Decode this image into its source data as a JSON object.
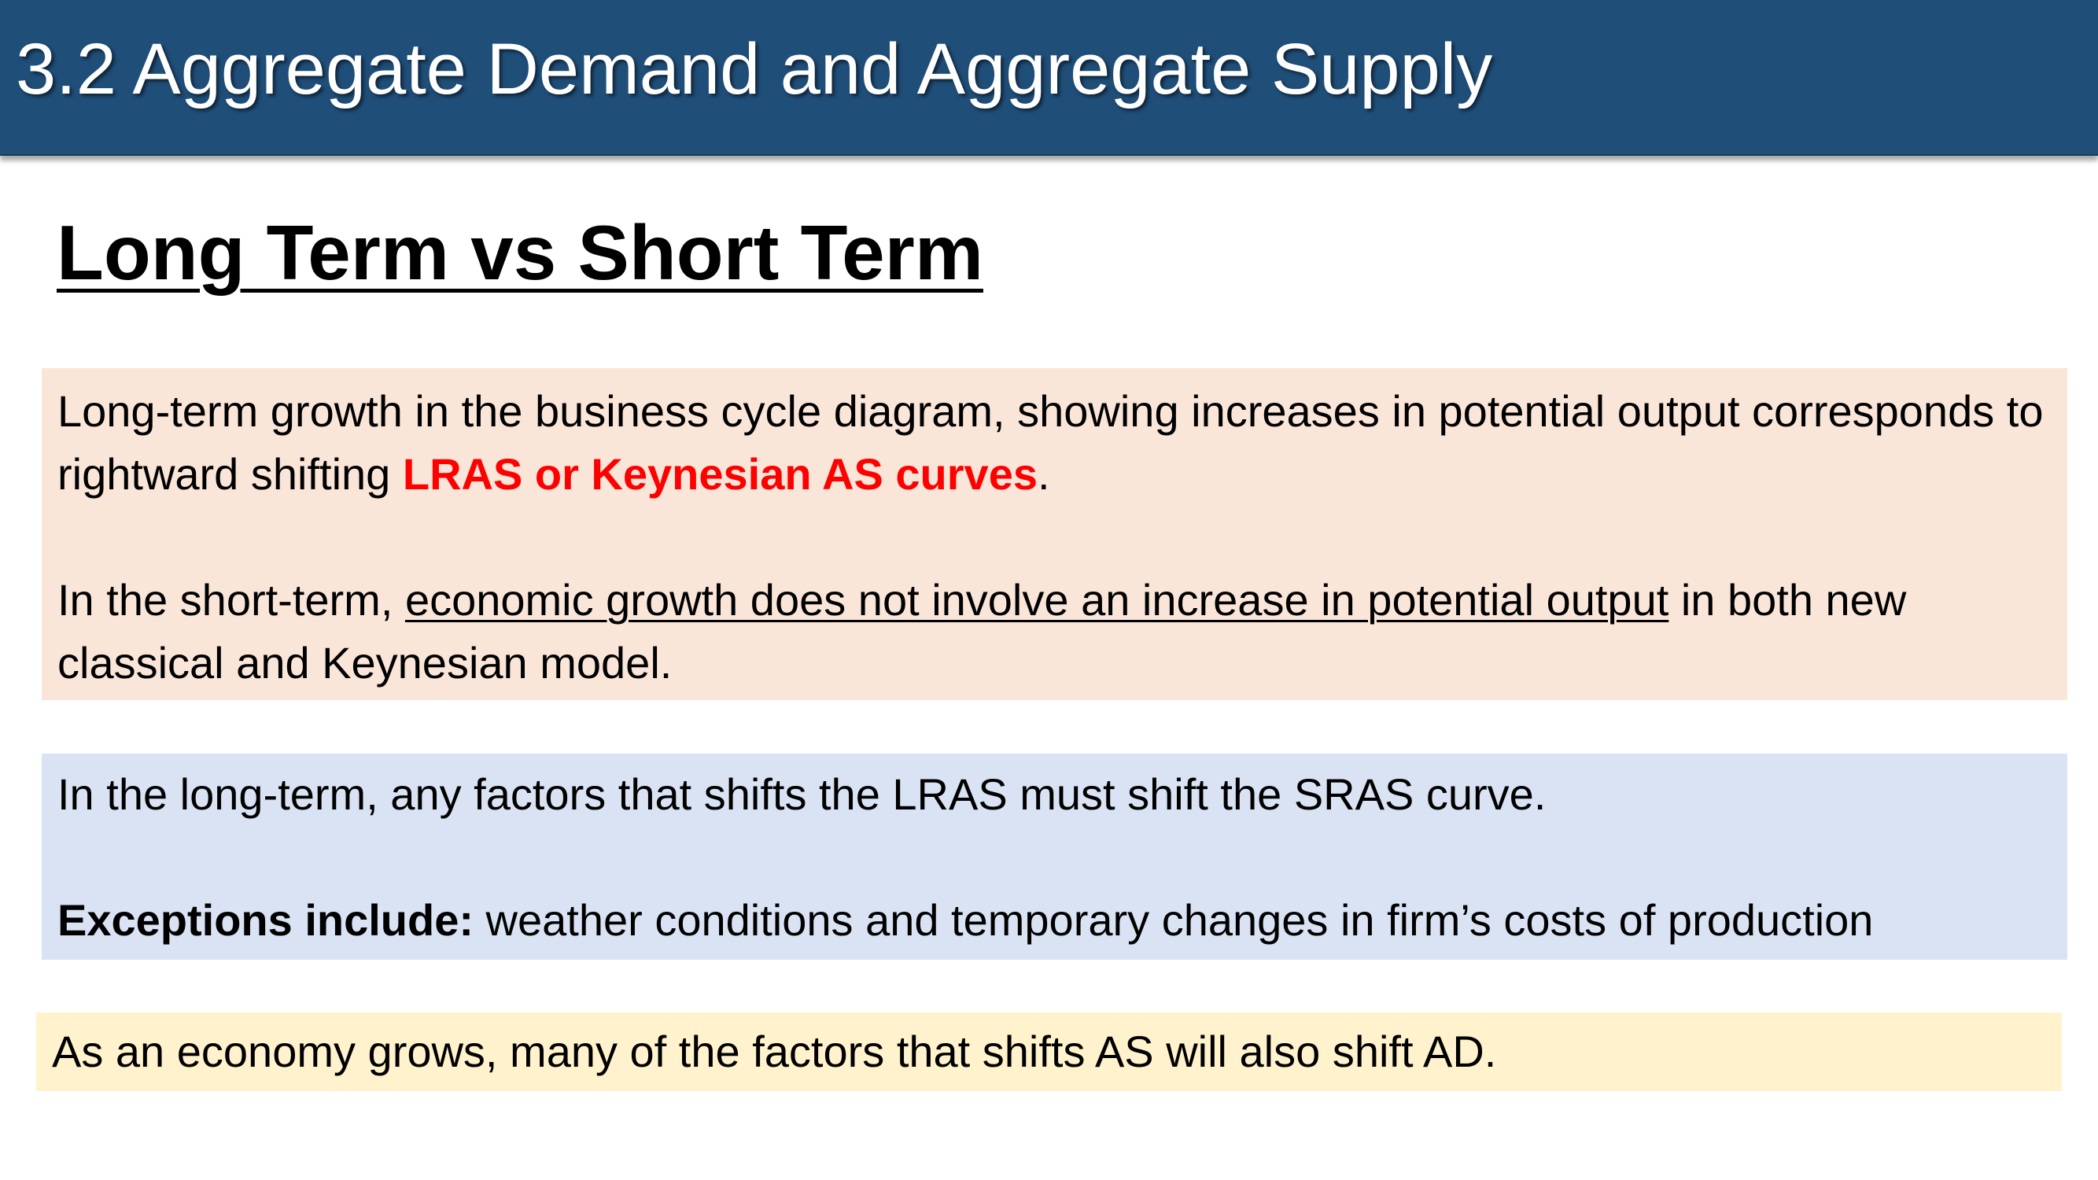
{
  "header": {
    "title": "3.2 Aggregate Demand and Aggregate Supply"
  },
  "section": {
    "heading": "Long Term vs Short Term"
  },
  "box_long_term": {
    "p1_text": "Long-term growth in the business cycle diagram, showing increases in potential output corresponds to rightward shifting ",
    "p1_highlight": "LRAS or Keynesian AS curves",
    "p1_end": ".",
    "p2_start": "In the short-term, ",
    "p2_underlined": "economic growth does not involve an increase in potential output",
    "p2_end": " in both new classical and Keynesian model."
  },
  "box_shifts": {
    "p1_text": "In the long-term, any factors that shifts the LRAS must shift the SRAS curve.",
    "p2_bold": "Exceptions include:",
    "p2_text": " weather conditions and temporary changes in firm’s costs of production"
  },
  "box_ad": {
    "text": "As an economy grows, many of the factors that shifts AS will also shift AD."
  },
  "colors": {
    "header_bg": "#1f4e79",
    "box_pink_bg": "#fae5d9",
    "box_blue_bg": "#dae3f3",
    "box_yellow_bg": "#fff2cc",
    "highlight_red": "#ff0000"
  }
}
